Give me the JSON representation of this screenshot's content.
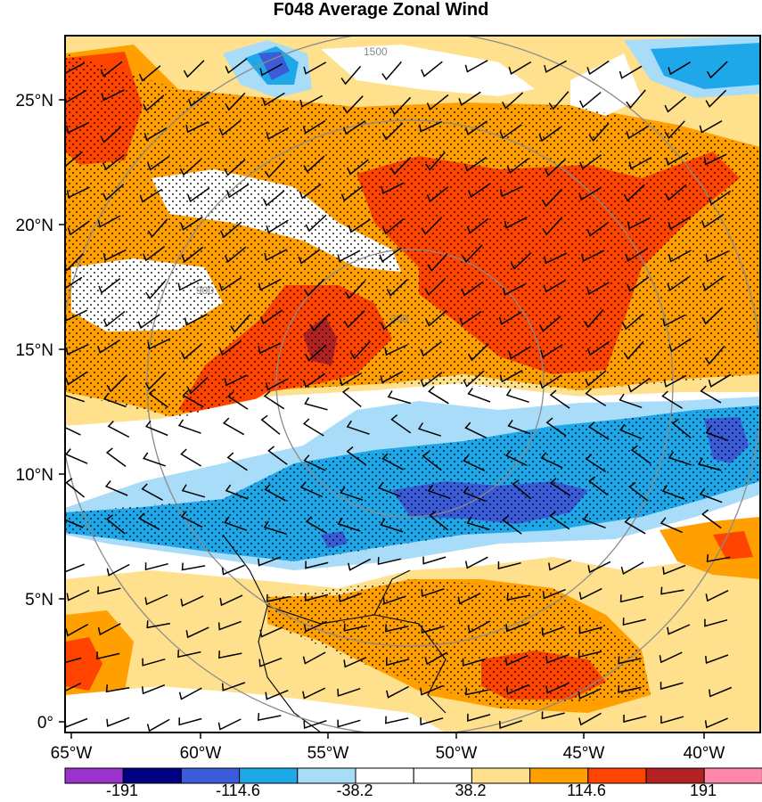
{
  "title": "F048 Average Zonal Wind",
  "colors": {
    "levels": [
      "#9933cc",
      "#000080",
      "#3b5cd8",
      "#1ea8ea",
      "#a8dcf8",
      "#ffffff",
      "#ffffff",
      "#ffe08c",
      "#ff9f00",
      "#ff4400",
      "#b22222",
      "#ff88aa"
    ],
    "range_ring": "#8c8c8c"
  },
  "map": {
    "lon_labels": [
      "65°W",
      "60°W",
      "55°W",
      "50°W",
      "45°W",
      "40°W"
    ],
    "lat_labels": [
      "25°N",
      "20°N",
      "15°N",
      "10°N",
      "5°N",
      "0°"
    ],
    "range_rings": [
      "300",
      "900",
      "1500"
    ],
    "overlays": [
      "wind-barbs",
      "stipple",
      "coastlines"
    ]
  },
  "colorbar": {
    "labels": [
      "-191",
      "-114.6",
      "-38.2",
      "38.2",
      "114.6",
      "191"
    ]
  }
}
